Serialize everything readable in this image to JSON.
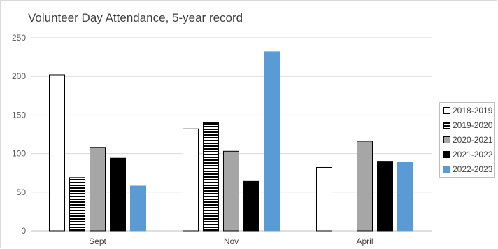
{
  "chart_data": {
    "type": "bar",
    "title": "Volunteer Day Attendance, 5-year record",
    "xlabel": "",
    "ylabel": "",
    "categories": [
      "Sept",
      "Nov",
      "April"
    ],
    "ylim": [
      0,
      250
    ],
    "yticks": [
      0,
      50,
      100,
      150,
      200,
      250
    ],
    "grid": true,
    "legend_position": "right",
    "series": [
      {
        "name": "2018-2019",
        "values": [
          202,
          132,
          82
        ],
        "style": "white",
        "color": "#ffffff"
      },
      {
        "name": "2019-2020",
        "values": [
          69,
          140,
          null
        ],
        "style": "horizontal-stripes",
        "color": "#000000"
      },
      {
        "name": "2020-2021",
        "values": [
          108,
          103,
          116
        ],
        "style": "gray",
        "color": "#a6a6a6"
      },
      {
        "name": "2021-2022",
        "values": [
          94,
          64,
          90
        ],
        "style": "black",
        "color": "#000000"
      },
      {
        "name": "2022-2023",
        "values": [
          58,
          232,
          89
        ],
        "style": "blue",
        "color": "#5b9bd5"
      }
    ]
  }
}
